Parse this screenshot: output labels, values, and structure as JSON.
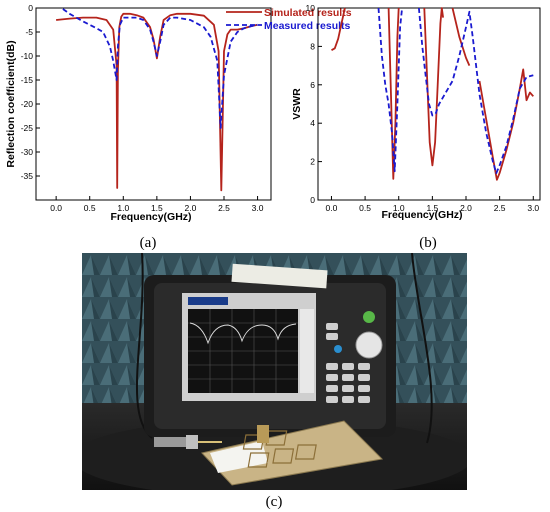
{
  "figure": {
    "labels": {
      "a": "(a)",
      "b": "(b)",
      "c": "(c)"
    }
  },
  "colors": {
    "simulated": "#b5241c",
    "measured": "#1a1ad0",
    "background": "#ffffff",
    "photo_wall": "#3d5a63",
    "instrument_body": "#1c1c1c",
    "pcb": "#c9b486"
  },
  "chart_data": [
    {
      "type": "line",
      "xlabel": "Frequency(GHz)",
      "ylabel": "Reflection coefficient(dB)",
      "xlim": [
        -0.3,
        3.2
      ],
      "ylim": [
        -40,
        0
      ],
      "xticks": [
        0.0,
        0.5,
        1.0,
        1.5,
        2.0,
        2.5,
        3.0
      ],
      "xtick_labels": [
        "0.0",
        "0.5",
        "1.0",
        "1.5",
        "2.0",
        "2.5",
        "3.0"
      ],
      "yticks": [
        -35,
        -30,
        -25,
        -20,
        -15,
        -10,
        -5,
        0
      ],
      "ytick_labels": [
        "-35",
        "-30",
        "-25",
        "-20",
        "-15",
        "-10",
        "-5",
        "0"
      ],
      "grid": false,
      "legend": {
        "placement": "top-right",
        "entries": [
          "Simulated results",
          "Measured results"
        ]
      },
      "series": [
        {
          "name": "Simulated results",
          "style": "solid",
          "x": [
            0.0,
            0.2,
            0.4,
            0.6,
            0.75,
            0.85,
            0.9,
            0.91,
            0.92,
            0.94,
            0.97,
            1.0,
            1.1,
            1.2,
            1.3,
            1.4,
            1.45,
            1.5,
            1.55,
            1.6,
            1.7,
            1.8,
            2.0,
            2.2,
            2.35,
            2.42,
            2.46,
            2.5,
            2.55,
            2.6,
            2.7,
            2.8,
            2.9,
            3.0
          ],
          "y": [
            -2.5,
            -2.2,
            -2.0,
            -2.0,
            -2.5,
            -4.5,
            -12,
            -37.5,
            -13,
            -4,
            -1.8,
            -1.2,
            -1.2,
            -1.5,
            -2.0,
            -4.0,
            -6.5,
            -10.5,
            -6,
            -2.5,
            -1.5,
            -1.2,
            -1.2,
            -1.6,
            -3.5,
            -9,
            -38,
            -9,
            -5.5,
            -4.5,
            -4.5,
            -4.2,
            -3.8,
            -3.5
          ]
        },
        {
          "name": "Measured results",
          "style": "dashed",
          "x": [
            0.1,
            0.2,
            0.3,
            0.4,
            0.5,
            0.6,
            0.7,
            0.8,
            0.85,
            0.9,
            0.92,
            0.95,
            1.0,
            1.1,
            1.2,
            1.3,
            1.4,
            1.45,
            1.5,
            1.55,
            1.6,
            1.7,
            1.8,
            2.0,
            2.2,
            2.3,
            2.4,
            2.45,
            2.5,
            2.6,
            2.7,
            2.8,
            2.9,
            3.0
          ],
          "y": [
            -0.2,
            -1.2,
            -2.0,
            -2.8,
            -3.5,
            -4.2,
            -5.0,
            -8.0,
            -11.0,
            -15.0,
            -8.0,
            -3.5,
            -2.0,
            -2.0,
            -2.0,
            -2.5,
            -4.5,
            -7.0,
            -10.0,
            -7.0,
            -3.5,
            -2.0,
            -2.0,
            -2.5,
            -4.0,
            -6.0,
            -11.0,
            -25.0,
            -14.0,
            -7.0,
            -5.0,
            -4.2,
            -3.8,
            -3.5
          ]
        }
      ]
    },
    {
      "type": "line",
      "xlabel": "Frequency(GHz)",
      "ylabel": "VSWR",
      "xlim": [
        -0.2,
        3.1
      ],
      "ylim": [
        0,
        10
      ],
      "xticks": [
        0.0,
        0.5,
        1.0,
        1.5,
        2.0,
        2.5,
        3.0
      ],
      "xtick_labels": [
        "0.0",
        "0.5",
        "1.0",
        "1.5",
        "2.0",
        "2.5",
        "3.0"
      ],
      "yticks": [
        0,
        2,
        4,
        6,
        8,
        10
      ],
      "ytick_labels": [
        "0",
        "2",
        "4",
        "6",
        "8",
        "10"
      ],
      "grid": false,
      "legend": null,
      "series": [
        {
          "name": "Simulated results",
          "style": "solid",
          "segments": [
            {
              "x": [
                0.0,
                0.05,
                0.1,
                0.15,
                0.2
              ],
              "y": [
                7.8,
                7.9,
                8.4,
                9.2,
                10.0
              ]
            },
            {
              "x": [
                0.85,
                0.88,
                0.92,
                0.95,
                0.98,
                1.0
              ],
              "y": [
                10.0,
                6.0,
                1.1,
                4.0,
                8.5,
                10.0
              ]
            },
            {
              "x": [
                1.38,
                1.42,
                1.46,
                1.5,
                1.54,
                1.58,
                1.62,
                1.64,
                1.66
              ],
              "y": [
                10.0,
                6.5,
                3.0,
                1.8,
                3.0,
                6.0,
                9.2,
                10.0,
                9.5
              ]
            },
            {
              "x": [
                1.8,
                1.9,
                2.0,
                2.05
              ],
              "y": [
                10.0,
                8.5,
                7.4,
                7.0
              ]
            },
            {
              "x": [
                2.2,
                2.3,
                2.4,
                2.46,
                2.5,
                2.6,
                2.7,
                2.8,
                2.85,
                2.9,
                2.95,
                3.0
              ],
              "y": [
                6.2,
                4.2,
                2.2,
                1.05,
                1.4,
                2.6,
                4.0,
                5.8,
                6.8,
                5.2,
                5.6,
                5.4
              ]
            }
          ]
        },
        {
          "name": "Measured results",
          "style": "dashed",
          "segments": [
            {
              "x": [
                0.7,
                0.75,
                0.8,
                0.85,
                0.9,
                0.94,
                0.98,
                1.02,
                1.05
              ],
              "y": [
                10.0,
                7.5,
                6.0,
                5.0,
                3.5,
                1.5,
                5.0,
                9.0,
                10.0
              ]
            },
            {
              "x": [
                1.3,
                1.35,
                1.4,
                1.45,
                1.5,
                1.55,
                1.6,
                1.7,
                1.8,
                1.9,
                2.0,
                2.05,
                2.1,
                2.15,
                2.2,
                2.3,
                2.4,
                2.45,
                2.5,
                2.6,
                2.7,
                2.8,
                2.9,
                3.0
              ],
              "y": [
                10.0,
                8.0,
                6.5,
                5.0,
                4.4,
                4.5,
                5.0,
                5.6,
                6.2,
                7.5,
                9.0,
                9.8,
                8.5,
                7.0,
                5.5,
                3.5,
                2.0,
                1.4,
                1.8,
                2.8,
                4.2,
                5.8,
                6.4,
                6.5
              ]
            }
          ]
        }
      ]
    }
  ]
}
